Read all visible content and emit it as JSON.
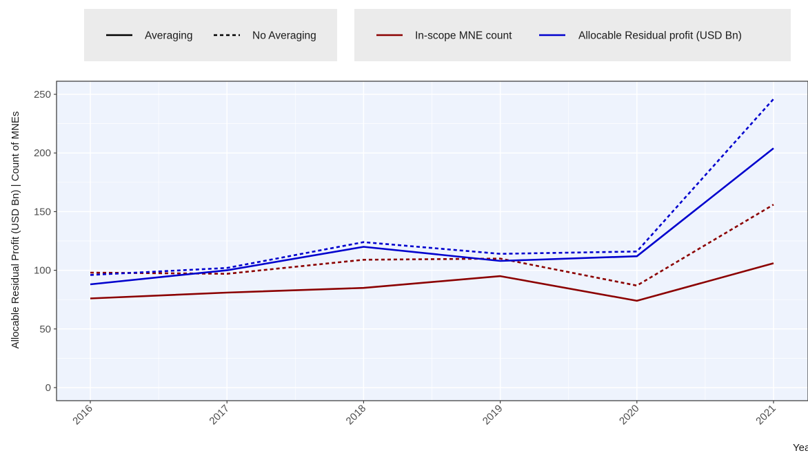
{
  "chart_data": {
    "type": "line",
    "title": "",
    "xlabel": "Year",
    "ylabel": "Allocable Residual Profit (USD Bn) | Count of MNEs",
    "x": [
      "2016",
      "2017",
      "2018",
      "2019",
      "2020",
      "2021"
    ],
    "xlim": [
      2016,
      2021
    ],
    "ylim": [
      0,
      250
    ],
    "y_ticks": [
      0,
      50,
      100,
      150,
      200,
      250
    ],
    "grid": true,
    "legend_position": "top",
    "legends": {
      "linetype": [
        {
          "label": "Averaging",
          "style": "solid"
        },
        {
          "label": "No Averaging",
          "style": "dashed"
        }
      ],
      "color": [
        {
          "label": "In-scope MNE count",
          "color": "#8b0000"
        },
        {
          "label": "Allocable Residual profit (USD Bn)",
          "color": "#0000cd"
        }
      ]
    },
    "series": [
      {
        "measure": "In-scope MNE count",
        "method": "Averaging",
        "color": "#8b0000",
        "style": "solid",
        "values": [
          76,
          81,
          85,
          95,
          74,
          106
        ]
      },
      {
        "measure": "In-scope MNE count",
        "method": "No Averaging",
        "color": "#8b0000",
        "style": "dashed",
        "values": [
          98,
          97,
          109,
          110,
          87,
          156
        ]
      },
      {
        "measure": "Allocable Residual profit (USD Bn)",
        "method": "Averaging",
        "color": "#0000cd",
        "style": "solid",
        "values": [
          88,
          100,
          120,
          108,
          112,
          204
        ]
      },
      {
        "measure": "Allocable Residual profit (USD Bn)",
        "method": "No Averaging",
        "color": "#0000cd",
        "style": "dashed",
        "values": [
          96,
          102,
          124,
          114,
          116,
          246
        ]
      }
    ],
    "colors": {
      "panel_background": "#eef3fd",
      "grid": "#ffffff",
      "legend_background": "#ebebeb"
    }
  }
}
